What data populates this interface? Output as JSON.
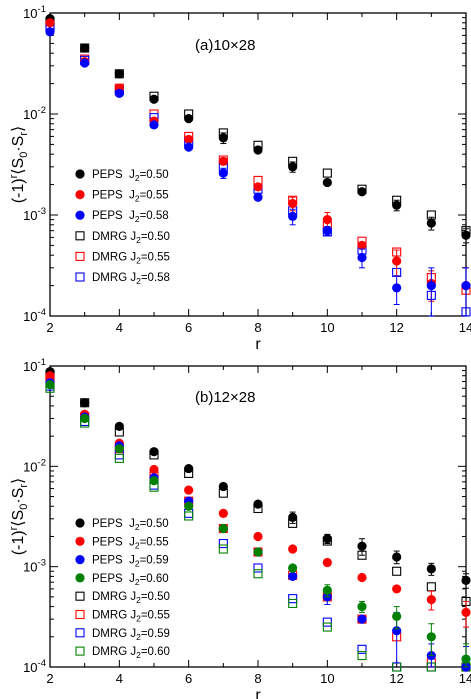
{
  "chart_data": [
    {
      "type": "scatter",
      "title": "(a)10×28",
      "xlabel": "r",
      "ylabel": "(-1)^r⟨S_0·S_r⟩",
      "xlim": [
        2,
        14
      ],
      "ylim": [
        0.0001,
        0.1
      ],
      "yscale": "log",
      "xticks": [
        "2",
        "4",
        "6",
        "8",
        "10",
        "12",
        "14"
      ],
      "yticks": [
        "10^-4",
        "10^-3",
        "10^-2",
        "10^-1"
      ],
      "legend_position": "left",
      "series": [
        {
          "name": "PEPS  J2=0.50",
          "marker": "filled-circle",
          "color": "#000000",
          "x": [
            2,
            3,
            4,
            5,
            6,
            7,
            8,
            9,
            10,
            11,
            12,
            13,
            14
          ],
          "y": [
            0.088,
            0.045,
            0.025,
            0.014,
            0.009,
            0.0058,
            0.0044,
            0.003,
            0.0021,
            0.0017,
            0.00125,
            0.00083,
            0.00063
          ],
          "err": [
            0,
            0,
            0,
            0,
            0,
            0.0007,
            0,
            0.00035,
            0,
            0,
            0.00015,
            0.00012,
            0.0001
          ]
        },
        {
          "name": "PEPS  J2=0.55",
          "marker": "filled-circle",
          "color": "#ff0000",
          "x": [
            2,
            3,
            4,
            5,
            6,
            7,
            8,
            9,
            10,
            11,
            12,
            13,
            14
          ],
          "y": [
            0.08,
            0.033,
            0.018,
            0.0085,
            0.0056,
            0.0034,
            0.0019,
            0.0013,
            0.0009,
            0.0005,
            0.00035,
            0.00021,
            0.0002
          ],
          "err": [
            0,
            0,
            0,
            0,
            0,
            0,
            0,
            0.0002,
            0.00016,
            0,
            0.0001,
            7e-05,
            0.0001
          ]
        },
        {
          "name": "PEPS  J2=0.58",
          "marker": "filled-circle",
          "color": "#0000ff",
          "x": [
            2,
            3,
            4,
            5,
            6,
            7,
            8,
            9,
            10,
            11,
            12,
            13,
            14
          ],
          "y": [
            0.065,
            0.032,
            0.016,
            0.0078,
            0.0047,
            0.0026,
            0.0015,
            0.00097,
            0.0007,
            0.00038,
            0.00019,
            0.0002,
            0.0002
          ],
          "err": [
            0,
            0,
            0,
            0,
            0,
            0.0003,
            0,
            0.00017,
            7e-05,
            8e-05,
            6e-05,
            0.0001,
            0.0001
          ]
        },
        {
          "name": "DMRG J2=0.50",
          "marker": "open-square",
          "color": "#000000",
          "x": [
            2,
            3,
            4,
            5,
            6,
            7,
            8,
            9,
            10,
            11,
            12,
            13,
            14
          ],
          "y": [
            0.082,
            0.045,
            0.025,
            0.015,
            0.01,
            0.0065,
            0.0049,
            0.0034,
            0.0026,
            0.0018,
            0.0014,
            0.001,
            0.0007
          ],
          "err": [
            0,
            0,
            0,
            0,
            0,
            0,
            0,
            0,
            0,
            0,
            0,
            0,
            0
          ]
        },
        {
          "name": "DMRG J2=0.55",
          "marker": "open-square",
          "color": "#ff0000",
          "x": [
            2,
            3,
            4,
            5,
            6,
            7,
            8,
            9,
            10,
            11,
            12,
            13,
            14
          ],
          "y": [
            0.075,
            0.035,
            0.018,
            0.01,
            0.006,
            0.0035,
            0.0022,
            0.0014,
            0.00078,
            0.00055,
            0.00043,
            0.00024,
            0.00018
          ],
          "err": [
            0,
            0,
            0,
            0,
            0,
            0,
            0,
            0,
            0,
            0,
            0,
            0,
            0
          ]
        },
        {
          "name": "DMRG J2=0.58",
          "marker": "open-square",
          "color": "#0000ff",
          "x": [
            2,
            3,
            4,
            5,
            6,
            7,
            8,
            9,
            10,
            11,
            12,
            13,
            14
          ],
          "y": [
            0.072,
            0.034,
            0.017,
            0.0092,
            0.0053,
            0.003,
            0.0018,
            0.0011,
            0.00068,
            0.00045,
            0.00027,
            0.00016,
            0.00011
          ],
          "err": [
            0,
            0,
            0,
            0,
            0,
            0,
            0,
            0,
            0,
            0,
            0,
            0,
            0
          ]
        }
      ]
    },
    {
      "type": "scatter",
      "title": "(b)12×28",
      "xlabel": "r",
      "ylabel": "(-1)^r⟨S_0·S_r⟩",
      "xlim": [
        2,
        14
      ],
      "ylim": [
        0.0001,
        0.1
      ],
      "yscale": "log",
      "xticks": [
        "2",
        "4",
        "6",
        "8",
        "10",
        "12",
        "14"
      ],
      "yticks": [
        "10^-4",
        "10^-3",
        "10^-2",
        "10^-1"
      ],
      "legend_position": "bottom-left",
      "series": [
        {
          "name": "PEPS  J2=0.50",
          "marker": "filled-circle",
          "color": "#000000",
          "x": [
            2,
            3,
            4,
            5,
            6,
            7,
            8,
            9,
            10,
            11,
            12,
            13,
            14
          ],
          "y": [
            0.088,
            0.043,
            0.025,
            0.014,
            0.0095,
            0.0063,
            0.0042,
            0.0031,
            0.0019,
            0.0016,
            0.00125,
            0.00095,
            0.00073
          ],
          "err": [
            0,
            0,
            0,
            0,
            0,
            0,
            0,
            0.0004,
            0.0002,
            0.0003,
            0.00018,
            0.00013,
            0.00012
          ]
        },
        {
          "name": "PEPS  J2=0.55",
          "marker": "filled-circle",
          "color": "#ff0000",
          "x": [
            2,
            3,
            4,
            5,
            6,
            7,
            8,
            9,
            10,
            11,
            12,
            13,
            14
          ],
          "y": [
            0.08,
            0.033,
            0.017,
            0.0093,
            0.0058,
            0.0034,
            0.002,
            0.0015,
            0.0011,
            0.00078,
            0.0006,
            0.00047,
            0.00035
          ],
          "err": [
            0,
            0,
            0,
            0,
            0,
            0,
            0,
            0,
            0,
            0,
            0,
            0.0001,
            0.0001
          ]
        },
        {
          "name": "PEPS  J2=0.59",
          "marker": "filled-circle",
          "color": "#0000ff",
          "x": [
            2,
            3,
            4,
            5,
            6,
            7,
            8,
            9,
            10,
            11,
            12,
            13,
            14
          ],
          "y": [
            0.068,
            0.031,
            0.016,
            0.0077,
            0.0045,
            0.0024,
            0.0014,
            0.0008,
            0.0005,
            0.0003,
            0.00023,
            0.00013,
            0.0001
          ],
          "err": [
            0,
            0,
            0,
            0,
            0,
            0,
            0,
            0,
            8e-05,
            0,
            0.00012,
            4e-05,
            6e-05
          ]
        },
        {
          "name": "PEPS  J2=0.60",
          "marker": "filled-circle",
          "color": "#008000",
          "x": [
            2,
            3,
            4,
            5,
            6,
            7,
            8,
            9,
            10,
            11,
            12,
            13,
            14
          ],
          "y": [
            0.065,
            0.03,
            0.015,
            0.0072,
            0.004,
            0.0024,
            0.0014,
            0.00097,
            0.00058,
            0.0004,
            0.00032,
            0.0002,
            0.00012
          ],
          "err": [
            0,
            0,
            0,
            0,
            0,
            0,
            0,
            0,
            8e-05,
            5e-05,
            8e-05,
            7e-05,
            5e-05
          ]
        },
        {
          "name": "DMRG J2=0.50",
          "marker": "open-square",
          "color": "#000000",
          "x": [
            2,
            3,
            4,
            5,
            6,
            7,
            8,
            9,
            10,
            11,
            12,
            13,
            14
          ],
          "y": [
            0.082,
            0.043,
            0.022,
            0.013,
            0.0085,
            0.0054,
            0.0038,
            0.0027,
            0.0018,
            0.0013,
            0.0009,
            0.00063,
            0.00045
          ],
          "err": [
            0,
            0,
            0,
            0,
            0,
            0,
            0,
            0,
            0,
            0,
            0,
            0,
            0
          ]
        },
        {
          "name": "DMRG J2=0.55",
          "marker": "open-square",
          "color": "#ff0000",
          "x": [
            2,
            3,
            4,
            5,
            6,
            7,
            8,
            9,
            10,
            11,
            12,
            13,
            14
          ],
          "y": [
            0.075,
            0.031,
            0.015,
            0.008,
            0.0045,
            0.0024,
            0.0014,
            0.00082,
            0.0005,
            0.0003,
            0.0002,
            0.00011,
            0.0001
          ],
          "err": [
            0,
            0,
            0,
            0,
            0,
            0,
            0,
            0,
            0,
            0,
            0,
            0,
            0
          ]
        },
        {
          "name": "DMRG J2=0.59",
          "marker": "open-square",
          "color": "#0000ff",
          "x": [
            2,
            3,
            4,
            5,
            6,
            7,
            8,
            9,
            10,
            11,
            12,
            13,
            14
          ],
          "y": [
            0.063,
            0.028,
            0.013,
            0.0065,
            0.0034,
            0.0017,
            0.00097,
            0.00048,
            0.00028,
            0.00015,
            0.0001,
            0.0001,
            0.0001
          ],
          "err": [
            0,
            0,
            0,
            0,
            0,
            0,
            0,
            0,
            0,
            0,
            0,
            0,
            0
          ]
        },
        {
          "name": "DMRG J2=0.60",
          "marker": "open-square",
          "color": "#008000",
          "x": [
            2,
            3,
            4,
            5,
            6,
            7,
            8,
            9,
            10,
            11,
            12,
            13,
            14
          ],
          "y": [
            0.06,
            0.027,
            0.012,
            0.0062,
            0.0032,
            0.0015,
            0.00085,
            0.00043,
            0.00025,
            0.00013,
            0.0001,
            0.0001,
            0.0001
          ],
          "err": [
            0,
            0,
            0,
            0,
            0,
            0,
            0,
            0,
            0,
            0,
            0,
            0,
            0
          ]
        }
      ]
    }
  ]
}
